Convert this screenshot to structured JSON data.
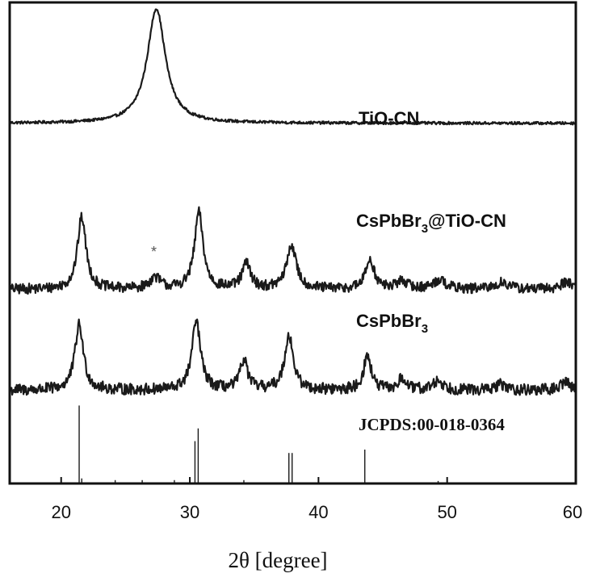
{
  "chart_data": {
    "type": "line",
    "xlabel": "2θ [degree]",
    "ylabel": "",
    "xlim": [
      16,
      60
    ],
    "xticks": [
      20,
      30,
      40,
      50,
      60
    ],
    "grid": false,
    "series": [
      {
        "name": "TiO-CN",
        "offset": 3.15,
        "peaks": [
          {
            "x": 27.4,
            "height": 1.0,
            "width": 0.85
          }
        ],
        "noise": 0.012,
        "points": [
          [
            16,
            0
          ],
          [
            24,
            0.02
          ],
          [
            26,
            0.3
          ],
          [
            27.4,
            1.0
          ],
          [
            28.8,
            0.3
          ],
          [
            31,
            0.02
          ],
          [
            60,
            0
          ]
        ]
      },
      {
        "name": "CsPbBr3@TiO-CN",
        "offset": 1.7,
        "peaks": [
          {
            "x": 21.6,
            "height": 0.63,
            "width": 0.4
          },
          {
            "x": 27.3,
            "height": 0.1,
            "width": 0.5
          },
          {
            "x": 30.7,
            "height": 0.67,
            "width": 0.4
          },
          {
            "x": 34.4,
            "height": 0.22,
            "width": 0.4
          },
          {
            "x": 37.9,
            "height": 0.38,
            "width": 0.45
          },
          {
            "x": 44.0,
            "height": 0.26,
            "width": 0.4
          },
          {
            "x": 46.5,
            "height": 0.07,
            "width": 0.5
          },
          {
            "x": 49.4,
            "height": 0.08,
            "width": 0.6
          },
          {
            "x": 54.3,
            "height": 0.06,
            "width": 0.6
          },
          {
            "x": 59.3,
            "height": 0.07,
            "width": 0.5
          }
        ],
        "noise": 0.045,
        "points": [
          [
            21.6,
            0.63
          ],
          [
            27.3,
            0.1
          ],
          [
            30.7,
            0.67
          ],
          [
            34.4,
            0.22
          ],
          [
            37.9,
            0.38
          ],
          [
            44.0,
            0.26
          ]
        ]
      },
      {
        "name": "CsPbBr3",
        "offset": 0.82,
        "peaks": [
          {
            "x": 21.4,
            "height": 0.57,
            "width": 0.4
          },
          {
            "x": 30.5,
            "height": 0.6,
            "width": 0.4
          },
          {
            "x": 34.2,
            "height": 0.26,
            "width": 0.35
          },
          {
            "x": 37.7,
            "height": 0.48,
            "width": 0.4
          },
          {
            "x": 43.8,
            "height": 0.3,
            "width": 0.35
          },
          {
            "x": 46.5,
            "height": 0.1,
            "width": 0.35
          },
          {
            "x": 49.3,
            "height": 0.08,
            "width": 0.5
          },
          {
            "x": 54.2,
            "height": 0.05,
            "width": 0.5
          },
          {
            "x": 59.2,
            "height": 0.08,
            "width": 0.4
          }
        ],
        "noise": 0.05,
        "points": [
          [
            21.4,
            0.57
          ],
          [
            30.5,
            0.6
          ],
          [
            34.2,
            0.26
          ],
          [
            37.7,
            0.48
          ],
          [
            43.8,
            0.3
          ]
        ]
      }
    ],
    "reference": {
      "name": "JCPDS:00-018-0364",
      "lines": [
        {
          "x": 21.4,
          "intensity": 0.92
        },
        {
          "x": 21.6,
          "intensity": 0.06
        },
        {
          "x": 24.2,
          "intensity": 0.04
        },
        {
          "x": 26.3,
          "intensity": 0.04
        },
        {
          "x": 28.8,
          "intensity": 0.04
        },
        {
          "x": 30.4,
          "intensity": 0.5
        },
        {
          "x": 30.65,
          "intensity": 0.65
        },
        {
          "x": 34.2,
          "intensity": 0.04
        },
        {
          "x": 37.7,
          "intensity": 0.36
        },
        {
          "x": 37.95,
          "intensity": 0.36
        },
        {
          "x": 43.6,
          "intensity": 0.4
        },
        {
          "x": 49.3,
          "intensity": 0.03
        }
      ]
    },
    "annotations": [
      {
        "text": "*",
        "x": 27.3,
        "series": "CsPbBr3@TiO-CN"
      }
    ],
    "labels": {
      "tio_cn": "TiO-CN",
      "composite_main": "CsPbBr",
      "composite_sub": "3",
      "composite_tail": "@TiO-CN",
      "cspbbr3_main": "CsPbBr",
      "cspbbr3_sub": "3",
      "reference": "JCPDS:00-018-0364"
    }
  }
}
